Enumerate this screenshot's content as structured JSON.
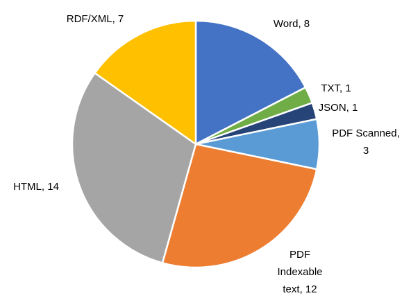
{
  "chart_data": {
    "type": "pie",
    "categories": [
      "Word",
      "TXT",
      "JSON",
      "PDF Scanned",
      "PDF Indexable text",
      "HTML",
      "RDF/XML"
    ],
    "values": [
      8,
      1,
      1,
      3,
      12,
      14,
      7
    ],
    "value_labels": [
      "Word, 8",
      "TXT, 1",
      "JSON, 1",
      "PDF Scanned, 3",
      "PDF Indexable text, 12",
      "HTML, 14",
      "RDF/XML, 7"
    ],
    "colors": [
      "#4472c4",
      "#70ad47",
      "#264478",
      "#5b9bd5",
      "#ed7d31",
      "#a5a5a5",
      "#ffc000"
    ]
  }
}
